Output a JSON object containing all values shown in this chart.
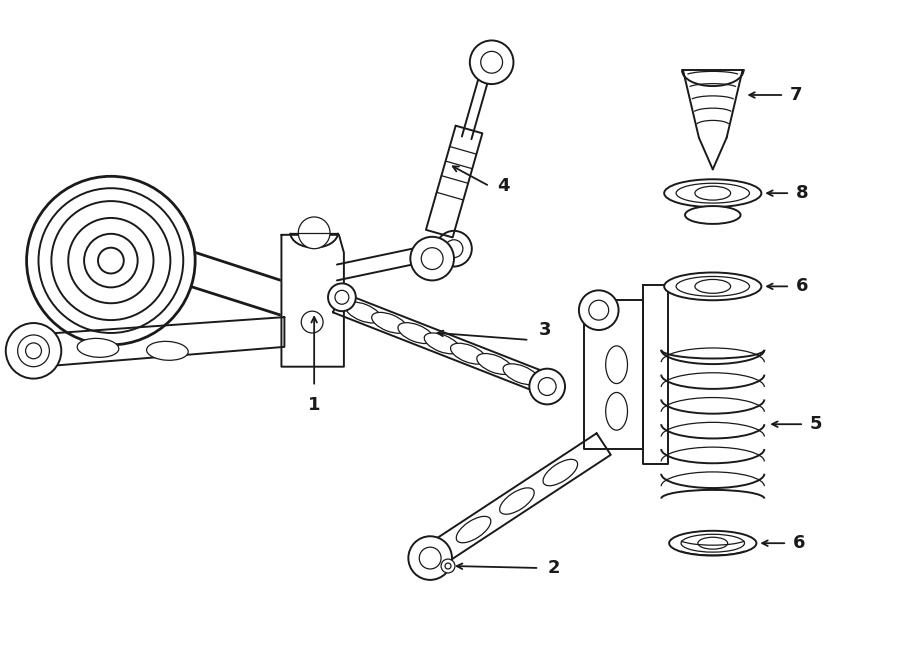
{
  "bg_color": "#ffffff",
  "line_color": "#1a1a1a",
  "figsize": [
    9.0,
    6.61
  ],
  "dpi": 100,
  "lw": 1.4,
  "lw_thin": 0.9,
  "lw_thick": 2.0
}
